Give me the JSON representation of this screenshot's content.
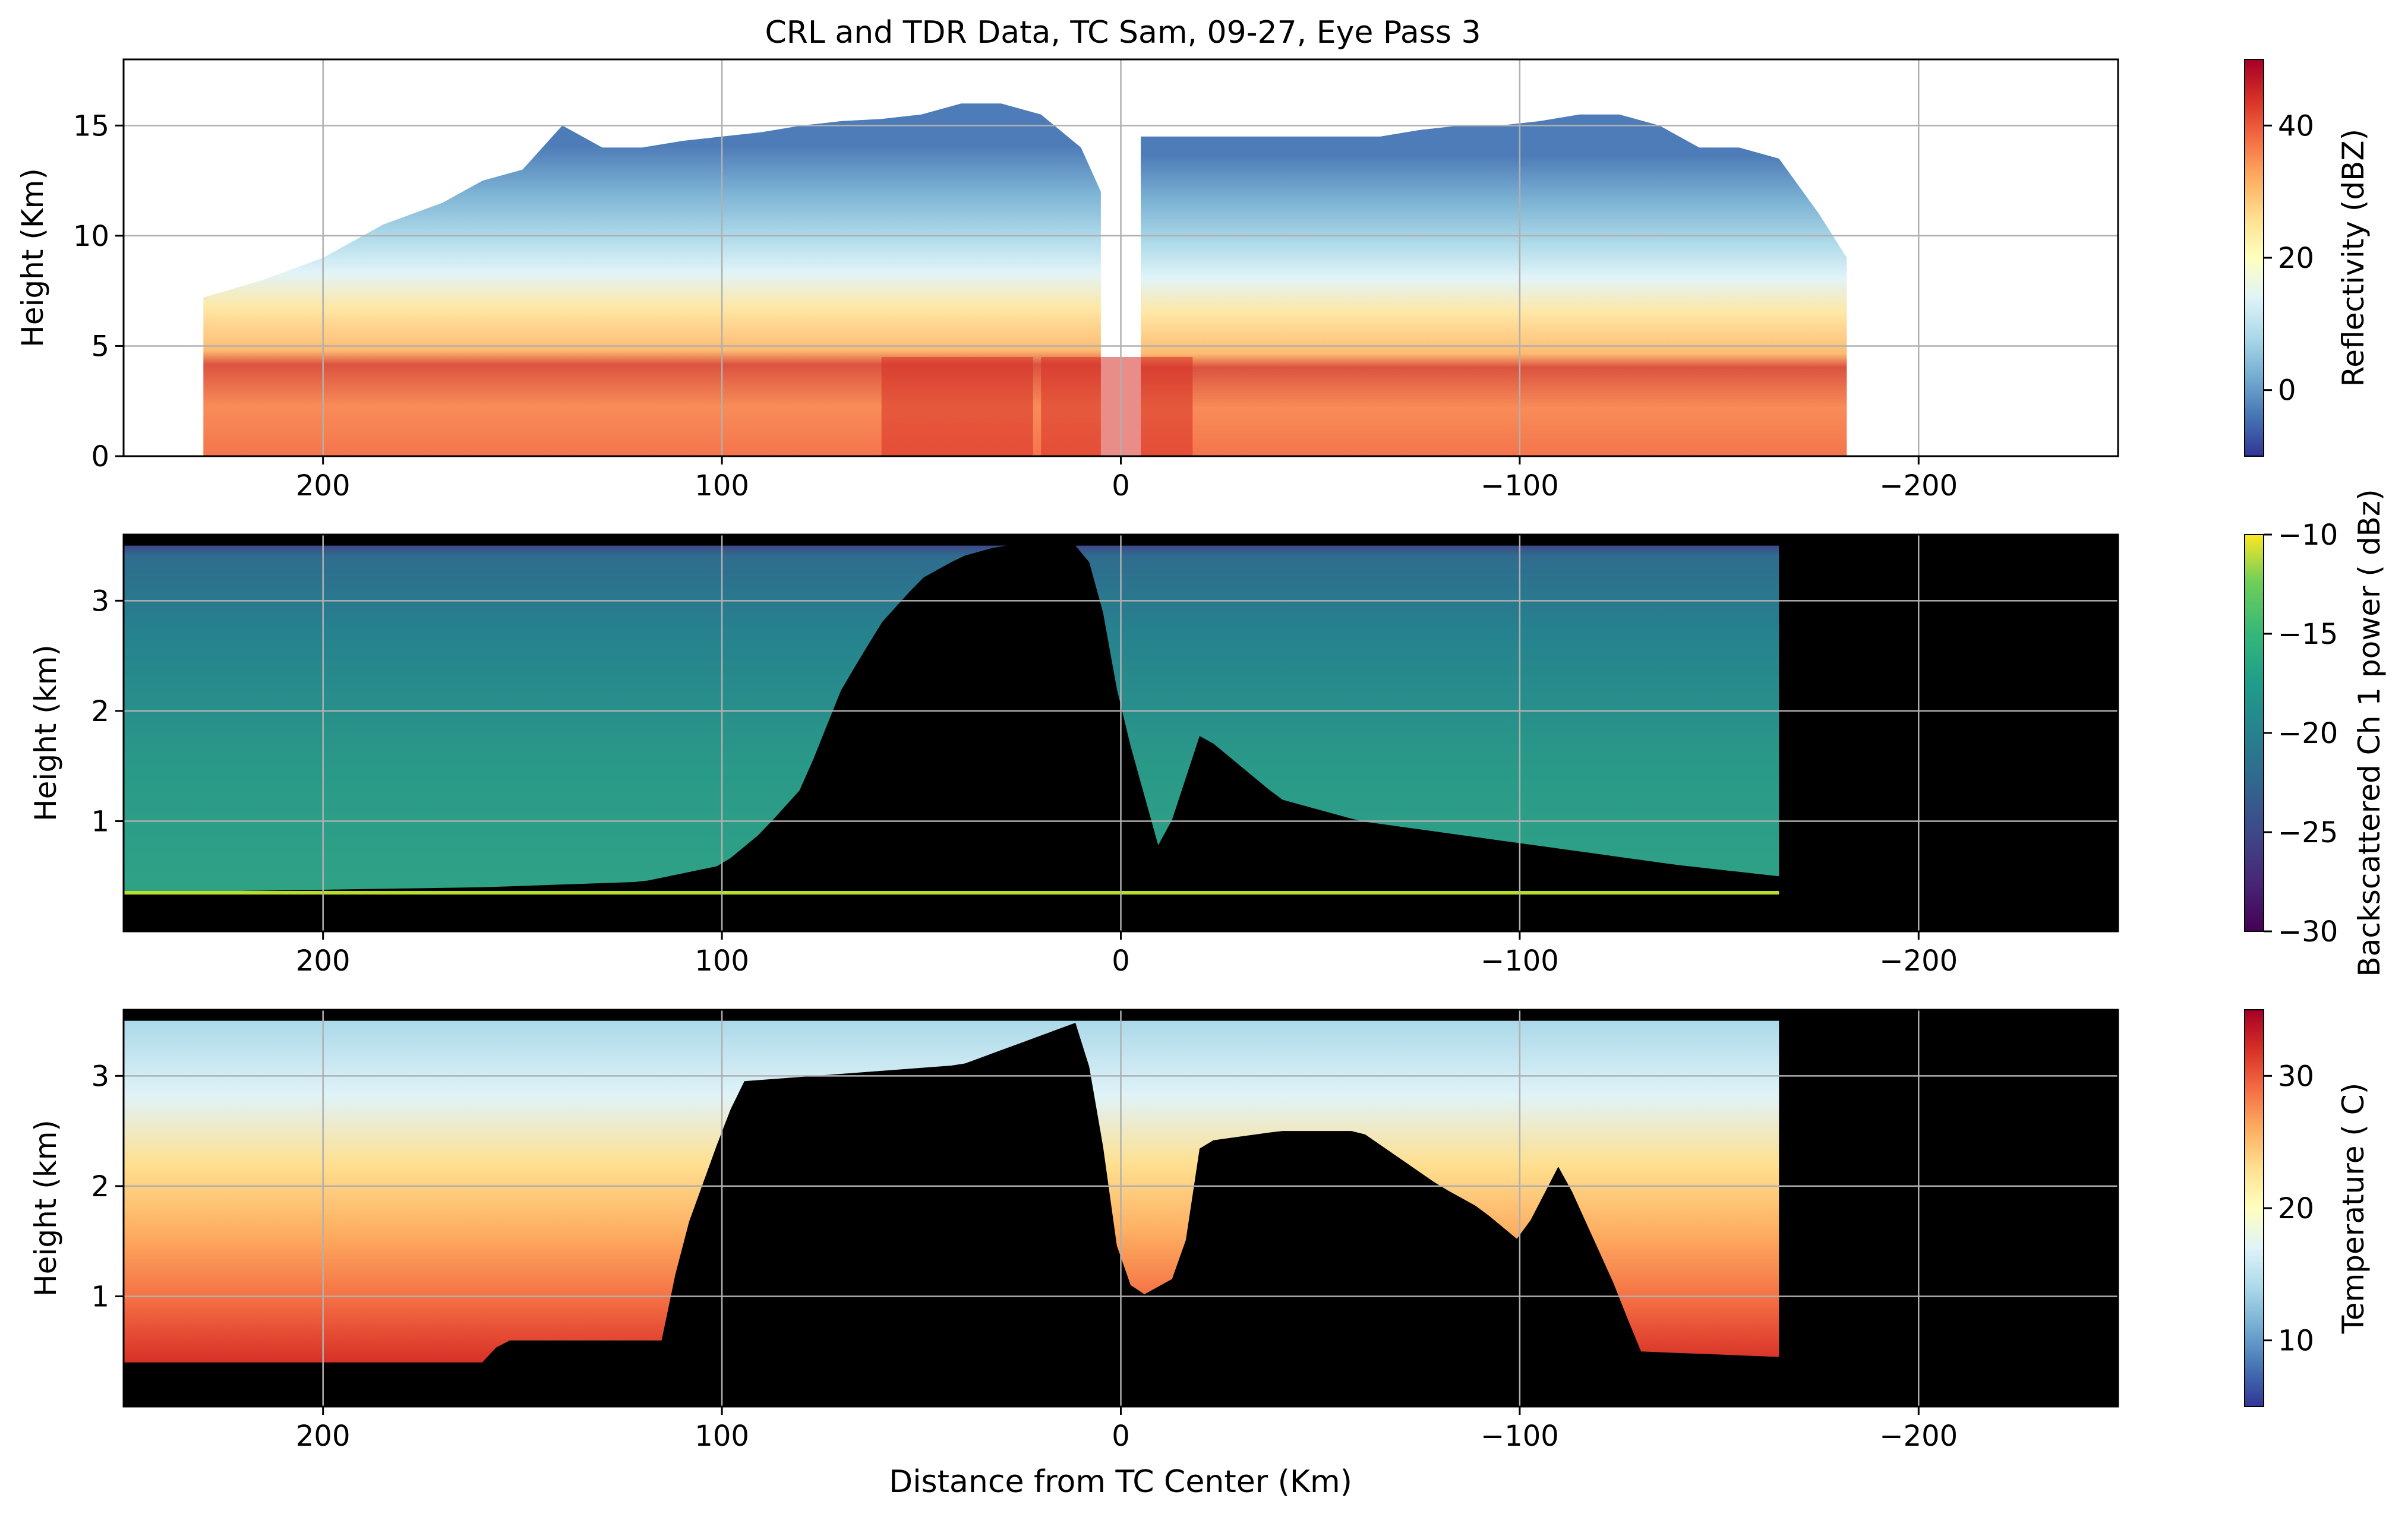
{
  "title": "CRL and TDR Data, TC Sam, 09-27, Eye Pass 3",
  "xlabel": "Distance from TC Center (Km)",
  "chart_data": [
    {
      "type": "heatmap",
      "panel": "reflectivity",
      "ylabel": "Height (Km)",
      "xlim": [
        250,
        -250
      ],
      "ylim": [
        0,
        18
      ],
      "xticks": [
        200,
        100,
        0,
        -100,
        -200
      ],
      "xtick_labels": [
        "200",
        "100",
        "0",
        "−100",
        "−200"
      ],
      "yticks": [
        0,
        5,
        10,
        15
      ],
      "ytick_labels": [
        "0",
        "5",
        "10",
        "15"
      ],
      "grid": true,
      "colorbar": {
        "label": "Reflectivity (dBZ)",
        "colormap": "RdYlBu_r",
        "range": [
          -10,
          50
        ],
        "ticks": [
          0,
          20,
          40
        ],
        "tick_labels": [
          "0",
          "20",
          "40"
        ]
      },
      "echo_top_profile": {
        "x": [
          230,
          215,
          200,
          185,
          170,
          160,
          150,
          140,
          130,
          120,
          110,
          100,
          90,
          80,
          70,
          60,
          50,
          40,
          30,
          20,
          10,
          5,
          -5,
          -15,
          -25,
          -35,
          -45,
          -55,
          -65,
          -75,
          -85,
          -95,
          -105,
          -115,
          -125,
          -135,
          -145,
          -155,
          -165,
          -175,
          -182
        ],
        "top_km": [
          7.2,
          8.0,
          9.0,
          10.5,
          11.5,
          12.5,
          13.0,
          15.0,
          14.0,
          14.0,
          14.3,
          14.5,
          14.7,
          15.0,
          15.2,
          15.3,
          15.5,
          16.0,
          16.0,
          15.5,
          14.0,
          12.0,
          14.5,
          14.5,
          14.5,
          14.5,
          14.5,
          14.5,
          14.5,
          14.8,
          15.0,
          15.0,
          15.2,
          15.5,
          15.5,
          15.0,
          14.0,
          14.0,
          13.5,
          11.0,
          9.0
        ]
      },
      "eye_gap_x": [
        5,
        -5
      ],
      "core_max_dbz": 45
    },
    {
      "type": "heatmap",
      "panel": "lidar_backscatter",
      "ylabel": "Height (km)",
      "xlim": [
        250,
        -250
      ],
      "ylim": [
        0,
        3.6
      ],
      "xticks": [
        200,
        100,
        0,
        -100,
        -200
      ],
      "xtick_labels": [
        "200",
        "100",
        "0",
        "−100",
        "−200"
      ],
      "yticks": [
        1,
        2,
        3
      ],
      "ytick_labels": [
        "1",
        "2",
        "3"
      ],
      "grid": true,
      "data_extent_x": [
        250,
        -165
      ],
      "colorbar": {
        "label": "Backscattered Ch 1 power ( dBz)",
        "colormap": "viridis",
        "range": [
          -30,
          -10
        ],
        "ticks": [
          -30,
          -25,
          -20,
          -15,
          -10
        ],
        "tick_labels": [
          "−30",
          "−25",
          "−20",
          "−15",
          "−10"
        ]
      },
      "cloud_base_profile": {
        "x": [
          250,
          160,
          120,
          100,
          90,
          80,
          70,
          60,
          50,
          40,
          30,
          20,
          10,
          5,
          0,
          -10,
          -20,
          -40,
          -60,
          -80,
          -100,
          -120,
          -140,
          -165
        ],
        "base_km": [
          0.35,
          0.4,
          0.45,
          0.6,
          0.9,
          1.3,
          2.2,
          2.8,
          3.2,
          3.4,
          3.5,
          3.6,
          3.6,
          3.0,
          2.0,
          0.7,
          1.8,
          1.2,
          1.0,
          0.9,
          0.8,
          0.7,
          0.6,
          0.5
        ]
      }
    },
    {
      "type": "heatmap",
      "panel": "temperature",
      "ylabel": "Height (km)",
      "xlim": [
        250,
        -250
      ],
      "ylim": [
        0,
        3.6
      ],
      "xticks": [
        200,
        100,
        0,
        -100,
        -200
      ],
      "xtick_labels": [
        "200",
        "100",
        "0",
        "−100",
        "−200"
      ],
      "yticks": [
        1,
        2,
        3
      ],
      "ytick_labels": [
        "1",
        "2",
        "3"
      ],
      "grid": true,
      "data_extent_x": [
        250,
        -165
      ],
      "colorbar": {
        "label": "Temperature ( C)",
        "colormap": "RdYlBu_r",
        "range": [
          5,
          35
        ],
        "ticks": [
          10,
          20,
          30
        ],
        "tick_labels": [
          "10",
          "20",
          "30"
        ]
      },
      "masked_floor_profile": {
        "x": [
          250,
          160,
          155,
          115,
          110,
          100,
          95,
          40,
          10,
          5,
          0,
          -5,
          -15,
          -20,
          -40,
          -60,
          -80,
          -90,
          -100,
          -110,
          -120,
          -125,
          -130,
          -165
        ],
        "floor_km": [
          0.4,
          0.4,
          0.6,
          0.6,
          1.5,
          2.5,
          2.95,
          3.1,
          3.5,
          2.5,
          1.2,
          1.0,
          1.2,
          2.4,
          2.5,
          2.5,
          2.0,
          1.8,
          1.5,
          2.2,
          1.4,
          1.0,
          0.5,
          0.45
        ]
      }
    }
  ]
}
